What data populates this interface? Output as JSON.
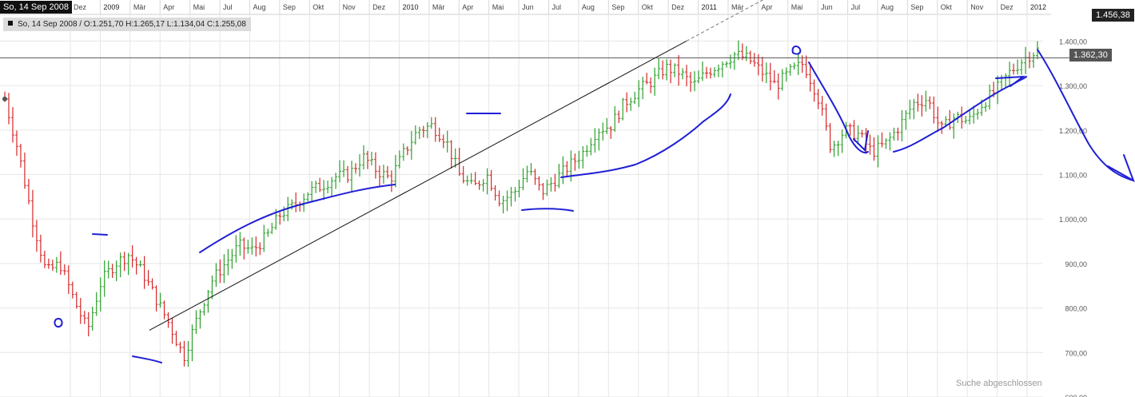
{
  "header": {
    "date": "So, 14 Sep 2008",
    "ohlc": "So, 14 Sep 2008 / O:1.251,70  H:1.265,17  L:1.134,04  C:1.255,08"
  },
  "price_tags": {
    "high": "1.456,38",
    "last": "1.362,30"
  },
  "status": {
    "search": "Suche abgeschlossen"
  },
  "colors": {
    "up": "#2ca02c",
    "down": "#d62728",
    "annotation": "#1f1fd6",
    "trendline": "#111111",
    "grid": "#e6e6e6"
  },
  "chart_data": {
    "type": "ohlc",
    "granularity": "weekly",
    "ylim": [
      600,
      1460
    ],
    "y_ticks": [
      {
        "value": 600,
        "label": "600,00"
      },
      {
        "value": 700,
        "label": "700,00"
      },
      {
        "value": 800,
        "label": "800,00"
      },
      {
        "value": 900,
        "label": "900,00"
      },
      {
        "value": 1000,
        "label": "1.000,00"
      },
      {
        "value": 1100,
        "label": "1.100,00"
      },
      {
        "value": 1200,
        "label": "1.200,00"
      },
      {
        "value": 1300,
        "label": "1.300,00"
      },
      {
        "value": 1400,
        "label": "1.400,00"
      }
    ],
    "x_labels": [
      {
        "label": "Dez",
        "year": false
      },
      {
        "label": "2009",
        "year": true
      },
      {
        "label": "Mär",
        "year": false
      },
      {
        "label": "Apr",
        "year": false
      },
      {
        "label": "Mai",
        "year": false
      },
      {
        "label": "Jul",
        "year": false
      },
      {
        "label": "Aug",
        "year": false
      },
      {
        "label": "Sep",
        "year": false
      },
      {
        "label": "Okt",
        "year": false
      },
      {
        "label": "Nov",
        "year": false
      },
      {
        "label": "Dez",
        "year": false
      },
      {
        "label": "2010",
        "year": true
      },
      {
        "label": "Mär",
        "year": false
      },
      {
        "label": "Apr",
        "year": false
      },
      {
        "label": "Mai",
        "year": false
      },
      {
        "label": "Jun",
        "year": false
      },
      {
        "label": "Jul",
        "year": false
      },
      {
        "label": "Aug",
        "year": false
      },
      {
        "label": "Sep",
        "year": false
      },
      {
        "label": "Okt",
        "year": false
      },
      {
        "label": "Dez",
        "year": false
      },
      {
        "label": "2011",
        "year": true
      },
      {
        "label": "Mär",
        "year": false
      },
      {
        "label": "Apr",
        "year": false
      },
      {
        "label": "Mai",
        "year": false
      },
      {
        "label": "Jun",
        "year": false
      },
      {
        "label": "Jul",
        "year": false
      },
      {
        "label": "Aug",
        "year": false
      },
      {
        "label": "Sep",
        "year": false
      },
      {
        "label": "Okt",
        "year": false
      },
      {
        "label": "Nov",
        "year": false
      },
      {
        "label": "Dez",
        "year": false
      },
      {
        "label": "2012",
        "year": true
      }
    ],
    "anchors": [
      {
        "v": 1270
      },
      {
        "v": 1150
      },
      {
        "v": 1000
      },
      {
        "v": 880
      },
      {
        "v": 900
      },
      {
        "v": 820
      },
      {
        "v": 750
      },
      {
        "v": 860
      },
      {
        "v": 900
      },
      {
        "v": 920
      },
      {
        "v": 880
      },
      {
        "v": 820
      },
      {
        "v": 760
      },
      {
        "v": 690
      },
      {
        "v": 780
      },
      {
        "v": 860
      },
      {
        "v": 900
      },
      {
        "v": 940
      },
      {
        "v": 930
      },
      {
        "v": 960
      },
      {
        "v": 1010
      },
      {
        "v": 1030
      },
      {
        "v": 1060
      },
      {
        "v": 1075
      },
      {
        "v": 1095
      },
      {
        "v": 1100
      },
      {
        "v": 1140
      },
      {
        "v": 1110
      },
      {
        "v": 1090
      },
      {
        "v": 1150
      },
      {
        "v": 1200
      },
      {
        "v": 1210
      },
      {
        "v": 1180
      },
      {
        "v": 1100
      },
      {
        "v": 1070
      },
      {
        "v": 1100
      },
      {
        "v": 1040
      },
      {
        "v": 1060
      },
      {
        "v": 1110
      },
      {
        "v": 1060
      },
      {
        "v": 1090
      },
      {
        "v": 1120
      },
      {
        "v": 1150
      },
      {
        "v": 1200
      },
      {
        "v": 1210
      },
      {
        "v": 1260
      },
      {
        "v": 1290
      },
      {
        "v": 1310
      },
      {
        "v": 1340
      },
      {
        "v": 1330
      },
      {
        "v": 1300
      },
      {
        "v": 1330
      },
      {
        "v": 1350
      },
      {
        "v": 1370
      },
      {
        "v": 1360
      },
      {
        "v": 1330
      },
      {
        "v": 1300
      },
      {
        "v": 1330
      },
      {
        "v": 1350
      },
      {
        "v": 1280
      },
      {
        "v": 1160
      },
      {
        "v": 1200
      },
      {
        "v": 1190
      },
      {
        "v": 1150
      },
      {
        "v": 1170
      },
      {
        "v": 1210
      },
      {
        "v": 1260
      },
      {
        "v": 1270
      },
      {
        "v": 1200
      },
      {
        "v": 1230
      },
      {
        "v": 1220
      },
      {
        "v": 1260
      },
      {
        "v": 1290
      },
      {
        "v": 1330
      },
      {
        "v": 1360
      },
      {
        "v": 1380
      }
    ],
    "high": 1456.38,
    "last": 1362.3,
    "trendline": {
      "start": {
        "week": 0.14,
        "value": 750
      },
      "end": {
        "week": 0.66,
        "value": 1400
      }
    }
  }
}
